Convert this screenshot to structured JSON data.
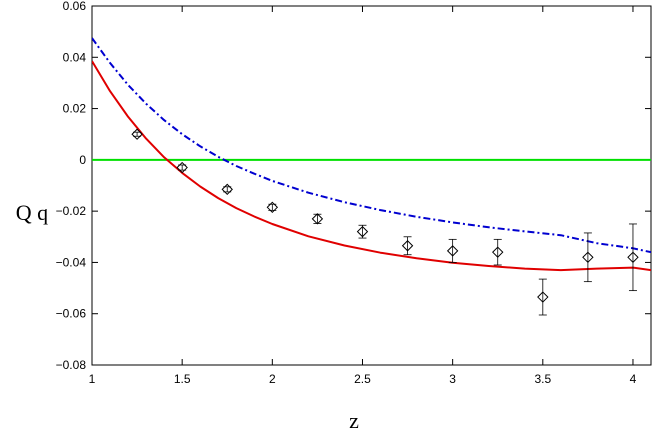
{
  "chart_data": {
    "type": "line",
    "title": "",
    "xlabel": "z",
    "ylabel": "Q q",
    "xlim": [
      1,
      4.1
    ],
    "ylim": [
      -0.08,
      0.06
    ],
    "xticks": [
      1,
      1.5,
      2,
      2.5,
      3,
      3.5,
      4
    ],
    "xtick_labels": [
      "1",
      "1.5",
      "2",
      "2.5",
      "3",
      "3.5",
      "4"
    ],
    "yticks": [
      -0.08,
      -0.06,
      -0.04,
      -0.02,
      0,
      0.02,
      0.04,
      0.06
    ],
    "ytick_labels": [
      "-0.08",
      "-0.06",
      "-0.04",
      "-0.02",
      "0",
      "0.02",
      "0.04",
      "0.06"
    ],
    "grid": false,
    "series": [
      {
        "kind": "line",
        "color": "#00e000",
        "dash": "solid",
        "x": [
          1,
          4.1
        ],
        "y": [
          0,
          0
        ]
      },
      {
        "kind": "line",
        "color": "#e00000",
        "dash": "solid",
        "x": [
          1.0,
          1.1,
          1.2,
          1.3,
          1.4,
          1.5,
          1.6,
          1.7,
          1.8,
          1.9,
          2.0,
          2.2,
          2.4,
          2.6,
          2.8,
          3.0,
          3.2,
          3.4,
          3.6,
          3.8,
          4.0,
          4.1
        ],
        "y": [
          0.0385,
          0.0268,
          0.0168,
          0.0083,
          0.001,
          -0.0051,
          -0.0104,
          -0.0149,
          -0.0188,
          -0.0221,
          -0.025,
          -0.0298,
          -0.0334,
          -0.0362,
          -0.0384,
          -0.0401,
          -0.0414,
          -0.0424,
          -0.043,
          -0.0424,
          -0.042,
          -0.043
        ]
      },
      {
        "kind": "line",
        "color": "#0000d0",
        "dash": "dashdot",
        "x": [
          1.0,
          1.1,
          1.2,
          1.3,
          1.4,
          1.5,
          1.6,
          1.7,
          1.8,
          1.9,
          2.0,
          2.2,
          2.4,
          2.6,
          2.8,
          3.0,
          3.2,
          3.4,
          3.6,
          3.8,
          4.0,
          4.1
        ],
        "y": [
          0.0475,
          0.0378,
          0.0292,
          0.0219,
          0.0155,
          0.01,
          0.0053,
          0.0012,
          -0.0024,
          -0.0054,
          -0.0082,
          -0.0128,
          -0.0165,
          -0.0196,
          -0.0222,
          -0.0244,
          -0.0263,
          -0.0279,
          -0.0294,
          -0.0325,
          -0.0345,
          -0.036
        ]
      },
      {
        "kind": "scatter",
        "marker": "diamond",
        "color": "#000000",
        "x": [
          1.25,
          1.5,
          1.75,
          2.0,
          2.25,
          2.5,
          2.75,
          3.0,
          3.25,
          3.5,
          3.75,
          4.0
        ],
        "y": [
          0.01,
          -0.003,
          -0.0115,
          -0.0185,
          -0.023,
          -0.028,
          -0.0335,
          -0.0355,
          -0.036,
          -0.0535,
          -0.038,
          -0.038
        ],
        "err": [
          0.0008,
          0.001,
          0.001,
          0.0012,
          0.0018,
          0.0025,
          0.0035,
          0.0045,
          0.005,
          0.007,
          0.0095,
          0.013
        ]
      }
    ]
  }
}
